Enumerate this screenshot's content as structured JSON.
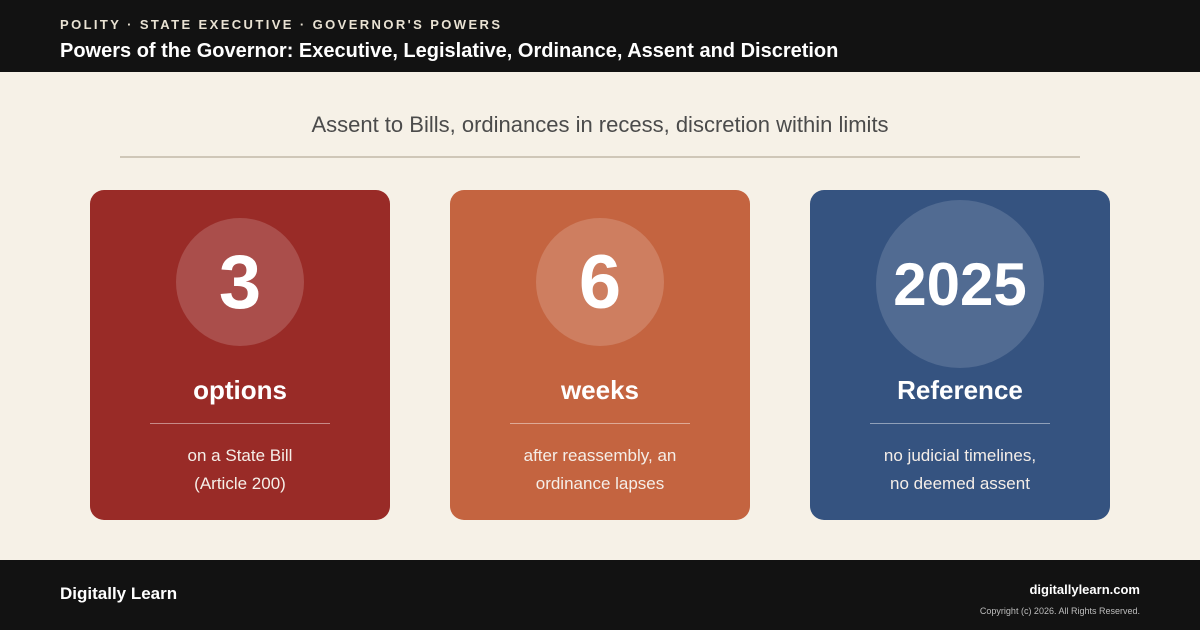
{
  "header": {
    "eyebrow": "POLITY · STATE EXECUTIVE · GOVERNOR'S POWERS",
    "title": "Powers of the Governor: Executive, Legislative, Ordinance, Assent and Discretion"
  },
  "subtitle": "Assent to Bills, ordinances in recess, discretion within limits",
  "cards": [
    {
      "value": "3",
      "unit": "options",
      "desc_line1": "on a State Bill",
      "desc_line2": "(Article 200)",
      "color": "#992b27"
    },
    {
      "value": "6",
      "unit": "weeks",
      "desc_line1": "after reassembly, an",
      "desc_line2": "ordinance lapses",
      "color": "#c46440"
    },
    {
      "value": "2025",
      "unit": "Reference",
      "desc_line1": "no judicial timelines,",
      "desc_line2": "no deemed assent",
      "color": "#355380"
    }
  ],
  "footer": {
    "brand": "Digitally Learn",
    "site": "digitallylearn.com",
    "copyright": "Copyright (c) 2026. All Rights Reserved."
  },
  "colors": {
    "background": "#f6f1e7",
    "bar": "#121212"
  }
}
